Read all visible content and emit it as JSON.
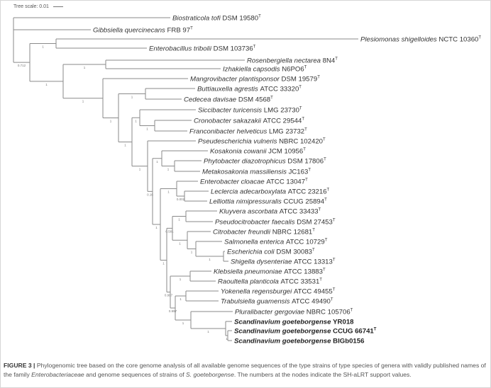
{
  "tree_scale": {
    "label": "Tree scale: 0.01"
  },
  "type_mark": "T",
  "leaves": [
    {
      "species": "Biostraticola tofi",
      "strain": "DSM 19580",
      "type": true
    },
    {
      "species": "Gibbsiella quercinecans",
      "strain": "FRB 97",
      "type": true
    },
    {
      "species": "Plesiomonas shigelloides",
      "strain": "NCTC 10360",
      "type": true
    },
    {
      "species": "Enterobacillus tribolii",
      "strain": "DSM 103736",
      "type": true
    },
    {
      "species": "Rosenbergiella nectarea",
      "strain": "8N4",
      "type": true
    },
    {
      "species": "Izhakiella capsodis",
      "strain": "N6PO6",
      "type": true
    },
    {
      "species": "Mangrovibacter plantisponsor",
      "strain": "DSM 19579",
      "type": true
    },
    {
      "species": "Buttiauxella agrestis",
      "strain": "ATCC 33320",
      "type": true
    },
    {
      "species": "Cedecea davisae",
      "strain": "DSM 4568",
      "type": true
    },
    {
      "species": "Siccibacter turicensis",
      "strain": "LMG 23730",
      "type": true
    },
    {
      "species": "Cronobacter sakazakii",
      "strain": "ATCC 29544",
      "type": true
    },
    {
      "species": "Franconibacter helveticus",
      "strain": "LMG 23732",
      "type": true
    },
    {
      "species": "Pseudescherichia vulneris",
      "strain": "NBRC 102420",
      "type": true
    },
    {
      "species": "Kosakonia cowanii",
      "strain": "JCM 10956",
      "type": true
    },
    {
      "species": "Phytobacter diazotrophicus",
      "strain": "DSM 17806",
      "type": true
    },
    {
      "species": "Metakosakonia massiliensis",
      "strain": "JC163",
      "type": true
    },
    {
      "species": "Enterobacter cloacae",
      "strain": "ATCC 13047",
      "type": true
    },
    {
      "species": "Leclercia adecarboxylata",
      "strain": "ATCC 23216",
      "type": true
    },
    {
      "species": "Lelliottia nimipressuralis",
      "strain": "CCUG 25894",
      "type": true
    },
    {
      "species": "Kluyvera ascorbata",
      "strain": "ATCC 33433",
      "type": true
    },
    {
      "species": "Pseudocitrobacter faecalis",
      "strain": "DSM 27453",
      "type": true
    },
    {
      "species": "Citrobacter freundii",
      "strain": "NBRC 12681",
      "type": true
    },
    {
      "species": "Salmonella enterica",
      "strain": "ATCC 10729",
      "type": true
    },
    {
      "species": "Escherichia coli",
      "strain": "DSM 30083",
      "type": true
    },
    {
      "species": "Shigella dysenteriae",
      "strain": "ATCC 13313",
      "type": true
    },
    {
      "species": "Klebsiella pneumoniae",
      "strain": "ATCC 13883",
      "type": true
    },
    {
      "species": "Raoultella planticola",
      "strain": "ATCC 33531",
      "type": true
    },
    {
      "species": "Yokenella regensburgei",
      "strain": "ATCC 49455",
      "type": true
    },
    {
      "species": "Trabulsiella guamensis",
      "strain": "ATCC 49490",
      "type": true
    },
    {
      "species": "Pluralibacter gergoviae",
      "strain": "NBRC 105706",
      "type": true
    },
    {
      "species": "Scandinavium goeteborgense",
      "strain": "YR018",
      "type": false,
      "bold": true
    },
    {
      "species": "Scandinavium goeteborgense",
      "strain": "CCUG 66741",
      "type": true,
      "bold": true
    },
    {
      "species": "Scandinavium goeteborgense",
      "strain": "BIGb0156",
      "type": false,
      "bold": true
    }
  ],
  "tree": {
    "id": "root",
    "children": [
      0,
      1,
      {
        "id": "A",
        "support": "0.712",
        "children": [
          {
            "id": "P",
            "support": "1",
            "children": [
              2,
              3
            ]
          },
          {
            "id": "B",
            "support": "1",
            "children": [
              {
                "id": "R",
                "support": "1",
                "children": [
                  4,
                  5
                ]
              },
              {
                "id": "C",
                "support": "1",
                "children": [
                  6,
                  {
                    "id": "D",
                    "support": "1",
                    "children": [
                      {
                        "id": "E",
                        "support": "1",
                        "children": [
                          7,
                          8
                        ]
                      },
                      {
                        "id": "N186",
                        "support": "1",
                        "children": [
                          {
                            "id": "G",
                            "support": "1",
                            "children": [
                              9,
                              {
                                "id": "CF",
                                "support": "1",
                                "children": [
                                  10,
                                  11
                                ]
                              }
                            ]
                          },
                          {
                            "id": "N208",
                            "support": "1",
                            "children": [
                              12,
                              {
                                "id": "N215",
                                "support": "0.16",
                                "children": [
                                  {
                                    "id": "K",
                                    "support": "1",
                                    "children": [
                                      13,
                                      {
                                        "id": "PM",
                                        "support": "1",
                                        "children": [
                                          14,
                                          15
                                        ]
                                      }
                                    ]
                                  },
                                  {
                                    "id": "N226",
                                    "support": "1",
                                    "children": [
                                      {
                                        "id": "Ent",
                                        "support": "1",
                                        "children": [
                                          16,
                                          {
                                            "id": "LL",
                                            "support": "0.002",
                                            "children": [
                                              17,
                                              18
                                            ]
                                          }
                                        ]
                                      },
                                      {
                                        "id": "N235",
                                        "support": "1",
                                        "children": [
                                          {
                                            "id": "N243",
                                            "support": "0.581",
                                            "children": [
                                              {
                                                "id": "Kl",
                                                "support": "1",
                                                "children": [
                                                  19,
                                                  20
                                                ]
                                              },
                                              {
                                                "id": "Cit",
                                                "support": "1",
                                                "children": [
                                                  21,
                                                  {
                                                    "id": "Sal",
                                                    "support": "1",
                                                    "children": [
                                                      22,
                                                      {
                                                        "id": "ES",
                                                        "support": "1",
                                                        "children": [
                                                          23,
                                                          24
                                                        ]
                                                      }
                                                    ]
                                                  }
                                                ]
                                              }
                                            ]
                                          },
                                          {
                                            "id": "N240",
                                            "support": "0.997",
                                            "children": [
                                              {
                                                "id": "Kle",
                                                "support": "1",
                                                "children": [
                                                  25,
                                                  26
                                                ]
                                              },
                                              {
                                                "id": "N247",
                                                "support": "0.997",
                                                "children": [
                                                  {
                                                    "id": "Yok",
                                                    "support": "1",
                                                    "children": [
                                                      27,
                                                      28
                                                    ]
                                                  },
                                                  {
                                                    "id": "Plu",
                                                    "support": "1",
                                                    "children": [
                                                      29,
                                                      {
                                                        "id": "Sc",
                                                        "support": "1",
                                                        "children": [
                                                          30,
                                                          {
                                                            "id": "Sc2",
                                                            "support": "1",
                                                            "children": [
                                                              31,
                                                              32
                                                            ]
                                                          }
                                                        ]
                                                      }
                                                    ]
                                                  }
                                                ]
                                              }
                                            ]
                                          }
                                        ]
                                      }
                                    ]
                                  }
                                ]
                              }
                            ]
                          }
                        ]
                      }
                    ]
                  }
                ]
              }
            ]
          }
        ]
      }
    ]
  },
  "caption": {
    "label": "FIGURE 3 |",
    "t1": " Phylogenomic tree based on the core genome analysis of all available genome sequences of the type strains of type species of genera with validly published names of the family ",
    "family": "Enterobacteriaceae",
    "t2": " and genome sequences of strains of ",
    "species": "S. goeteborgense",
    "t3": ". The numbers at the nodes indicate the SH-aLRT support values."
  },
  "colors": {
    "branch": "#8a8a8a",
    "text": "#333333"
  }
}
